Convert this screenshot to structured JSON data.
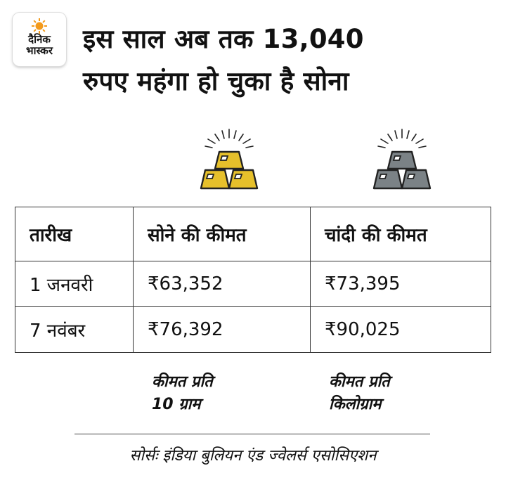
{
  "logo": {
    "line1": "दैनिक",
    "line2": "भास्कर"
  },
  "headline": {
    "line1": "इस साल अब तक 13,040",
    "line2": "रुपए महंगा हो चुका है सोना"
  },
  "colors": {
    "gold": "#e6c02b",
    "silver": "#7b8286",
    "logo_sun": "#f39a1b"
  },
  "table": {
    "headers": [
      "तारीख",
      "सोने की कीमत",
      "चांदी की कीमत"
    ],
    "rows": [
      [
        "1 जनवरी",
        "₹63,352",
        "₹73,395"
      ],
      [
        "7 नवंबर",
        "₹76,392",
        "₹90,025"
      ]
    ]
  },
  "notes": {
    "gold": [
      "कीमत प्रति",
      "10 ग्राम"
    ],
    "silver": [
      "कीमत प्रति",
      "किलोग्राम"
    ]
  },
  "source": "सोर्सः इंडिया बुलियन एंड ज्वेलर्स एसोसिएशन",
  "icons": {
    "gold": "gold-bars-icon",
    "silver": "silver-bars-icon",
    "logo": "sun-icon"
  }
}
